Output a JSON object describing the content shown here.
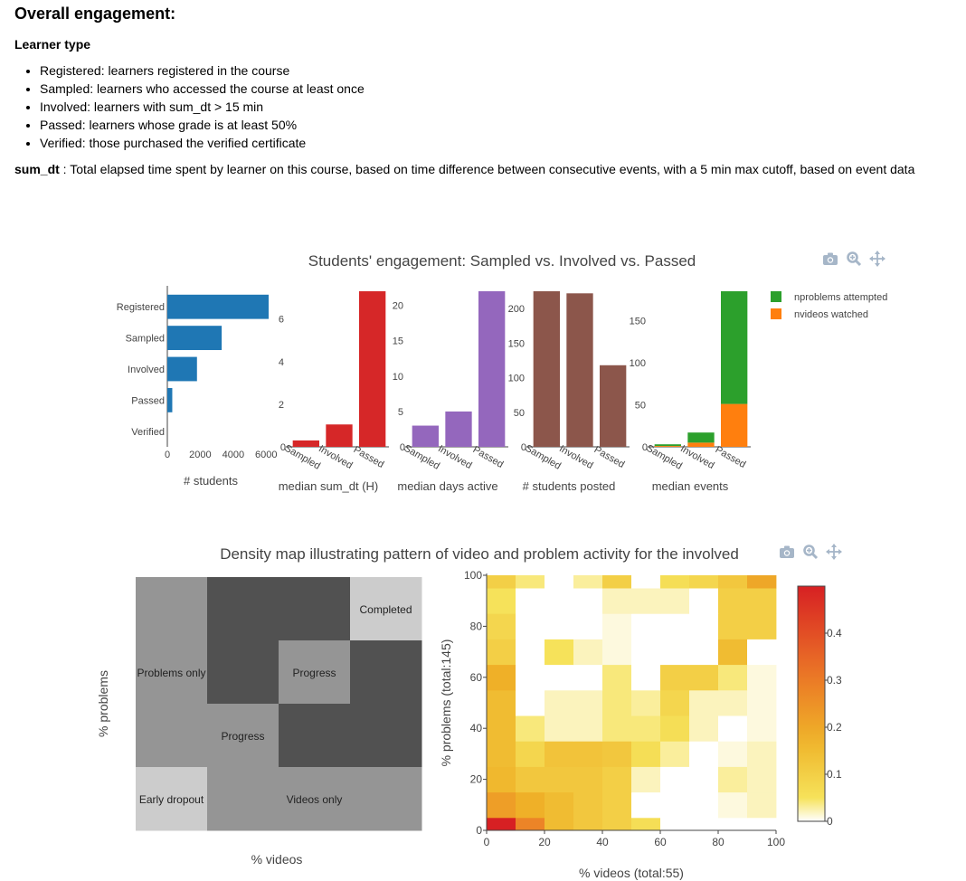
{
  "section": {
    "title": "Overall engagement:",
    "subtitle": "Learner type",
    "definitions": [
      "Registered: learners registered in the course",
      "Sampled: learners who accessed the course at least once",
      "Involved: learners with sum_dt > 15 min",
      "Passed: learners whose grade is at least 50%",
      "Verified: those purchased the verified certificate"
    ],
    "sumdt_term": "sum_dt",
    "sumdt_desc": " : Total elapsed time spent by learner on this course, based on time difference between consecutive events, with a 5 min max cutoff, based on event data"
  },
  "chart_data": [
    {
      "type": "bar",
      "title": "Students' engagement: Sampled vs. Involved vs. Passed",
      "panels": [
        {
          "orientation": "horizontal",
          "xlabel": "# students",
          "categories": [
            "Registered",
            "Sampled",
            "Involved",
            "Passed",
            "Verified"
          ],
          "values": [
            6150,
            3300,
            1800,
            300,
            0
          ],
          "xlim": [
            0,
            6150
          ],
          "ticks": [
            0,
            2000,
            4000,
            6000
          ],
          "color": "#1f77b4"
        },
        {
          "orientation": "vertical",
          "xlabel": "median sum_dt (H)",
          "categories": [
            "Sampled",
            "Involved",
            "Passed"
          ],
          "values": [
            0.3,
            1.05,
            7.3
          ],
          "ylim": [
            0,
            7.3
          ],
          "ticks": [
            0,
            2,
            4,
            6
          ],
          "color": "#d62728"
        },
        {
          "orientation": "vertical",
          "xlabel": "median days active",
          "categories": [
            "Sampled",
            "Involved",
            "Passed"
          ],
          "values": [
            3,
            5,
            22
          ],
          "ylim": [
            0,
            22
          ],
          "ticks": [
            0,
            5,
            10,
            15,
            20
          ],
          "color": "#9467bd"
        },
        {
          "orientation": "vertical",
          "xlabel": "# students posted",
          "categories": [
            "Sampled",
            "Involved",
            "Passed"
          ],
          "values": [
            225,
            222,
            118
          ],
          "ylim": [
            0,
            225
          ],
          "ticks": [
            0,
            50,
            100,
            150,
            200
          ],
          "color": "#8c564b"
        },
        {
          "orientation": "vertical",
          "stacked": true,
          "xlabel": "median events",
          "categories": [
            "Sampled",
            "Involved",
            "Passed"
          ],
          "series": [
            {
              "name": "nvideos watched",
              "values": [
                1,
                5,
                51
              ],
              "color": "#ff7f0e"
            },
            {
              "name": "nproblems attempted",
              "values": [
                2,
                12,
                134
              ],
              "color": "#2ca02c"
            }
          ],
          "ylim": [
            0,
            185
          ],
          "ticks": [
            0,
            50,
            100,
            150
          ]
        }
      ],
      "legend": {
        "placement": "top-right",
        "entries": [
          {
            "name": "nproblems attempted",
            "color": "#2ca02c"
          },
          {
            "name": "nvideos watched",
            "color": "#ff7f0e"
          }
        ]
      }
    },
    {
      "type": "heatmap",
      "title": "Density map illustrating pattern of video and problem activity for the involved",
      "schematic": {
        "xlabel": "% videos",
        "ylabel": "% problems",
        "grid": [
          [
            1,
            2,
            2,
            0
          ],
          [
            1,
            2,
            1,
            2
          ],
          [
            1,
            1,
            2,
            2
          ],
          [
            0,
            1,
            1,
            1
          ]
        ],
        "shades": [
          "#cccccc",
          "#959595",
          "#515151"
        ],
        "labels": [
          {
            "text": "Completed",
            "col": 3,
            "row": 0
          },
          {
            "text": "Problems only",
            "col": 0,
            "row": 1
          },
          {
            "text": "Progress",
            "col": 2,
            "row": 1
          },
          {
            "text": "Progress",
            "col": 1,
            "row": 2
          },
          {
            "text": "Early dropout",
            "col": 0,
            "row": 3
          },
          {
            "text": "Videos only",
            "col": 2,
            "row": 3
          }
        ]
      },
      "density": {
        "xlabel": "% videos (total:55)",
        "ylabel": "% problems (total:145)",
        "x_ticks": [
          0,
          20,
          40,
          60,
          80,
          100
        ],
        "y_ticks": [
          0,
          20,
          40,
          60,
          80,
          100
        ],
        "x_range": [
          0,
          100
        ],
        "y_range": [
          0,
          100
        ],
        "bin_size": 10,
        "colorbar_ticks": [
          0,
          0.1,
          0.2,
          0.3,
          0.4
        ],
        "zlim": [
          0,
          0.5
        ],
        "z": [
          [
            0.5,
            0.28,
            0.15,
            0.12,
            0.1,
            0.06,
            0.0,
            0.0,
            0.0,
            0.0
          ],
          [
            0.22,
            0.18,
            0.15,
            0.12,
            0.1,
            0.0,
            0.0,
            0.0,
            0.01,
            0.02
          ],
          [
            0.16,
            0.12,
            0.12,
            0.12,
            0.1,
            0.02,
            0.0,
            0.0,
            0.03,
            0.02
          ],
          [
            0.15,
            0.08,
            0.13,
            0.13,
            0.12,
            0.06,
            0.03,
            0.0,
            0.01,
            0.02
          ],
          [
            0.15,
            0.04,
            0.02,
            0.02,
            0.04,
            0.04,
            0.06,
            0.02,
            0.0,
            0.01
          ],
          [
            0.15,
            0.0,
            0.02,
            0.02,
            0.04,
            0.03,
            0.08,
            0.02,
            0.02,
            0.01
          ],
          [
            0.18,
            0.0,
            0.0,
            0.0,
            0.04,
            0.0,
            0.1,
            0.1,
            0.04,
            0.01
          ],
          [
            0.1,
            0.0,
            0.05,
            0.02,
            0.01,
            0.0,
            0.0,
            0.0,
            0.15,
            0.0
          ],
          [
            0.08,
            0.0,
            0.0,
            0.0,
            0.01,
            0.0,
            0.0,
            0.0,
            0.1,
            0.1
          ],
          [
            0.05,
            0.0,
            0.0,
            0.0,
            0.02,
            0.02,
            0.02,
            0.0,
            0.1,
            0.1
          ],
          [
            0.1,
            0.04,
            0.0,
            0.03,
            0.1,
            0.0,
            0.06,
            0.08,
            0.12,
            0.2
          ]
        ]
      }
    }
  ]
}
